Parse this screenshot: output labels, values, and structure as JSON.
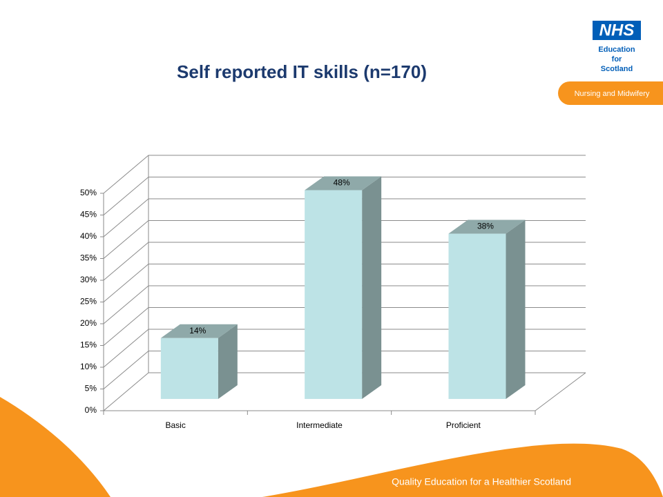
{
  "chart_data": {
    "type": "bar3d",
    "title": "Self reported IT skills (n=170)",
    "categories": [
      "Basic",
      "Intermediate",
      "Proficient"
    ],
    "values": [
      14,
      48,
      38
    ],
    "value_labels": [
      "14%",
      "48%",
      "38%"
    ],
    "color": "#bde3e6",
    "ylim": [
      0,
      50
    ],
    "yticks": [
      {
        "value": 0,
        "label": "0%"
      },
      {
        "value": 5,
        "label": "5%"
      },
      {
        "value": 10,
        "label": "10%"
      },
      {
        "value": 15,
        "label": "15%"
      },
      {
        "value": 20,
        "label": "20%"
      },
      {
        "value": 25,
        "label": "25%"
      },
      {
        "value": 30,
        "label": "30%"
      },
      {
        "value": 35,
        "label": "35%"
      },
      {
        "value": 40,
        "label": "40%"
      },
      {
        "value": 45,
        "label": "45%"
      },
      {
        "value": 50,
        "label": "50%"
      }
    ],
    "grid": true
  },
  "slide": {
    "logo": {
      "mark": "NHS",
      "lines": [
        "Education",
        "for",
        "Scotland"
      ]
    },
    "tag": "Nursing and Midwifery",
    "footer": "Quality Education for a Healthier Scotland"
  }
}
